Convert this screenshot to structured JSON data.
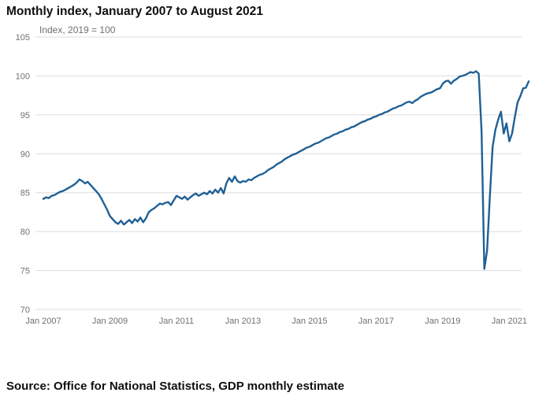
{
  "page": {
    "title": "Monthly index, January 2007 to August 2021",
    "source": "Source: Office for National Statistics, GDP monthly estimate"
  },
  "chart_data": {
    "type": "line",
    "title": "Monthly index, January 2007 to August 2021",
    "subtitle": "Index, 2019 = 100",
    "legend": "none",
    "grid": "horizontal",
    "line_color": "#206095",
    "axis_text_color": "#707071",
    "grid_color": "#dedede",
    "ylim": [
      70,
      105
    ],
    "y_ticks": [
      70,
      75,
      80,
      85,
      90,
      95,
      100,
      105
    ],
    "x_tick_labels": [
      {
        "label": "Jan 2007",
        "month": 0
      },
      {
        "label": "Jan 2009",
        "month": 24
      },
      {
        "label": "Jan 2011",
        "month": 48
      },
      {
        "label": "Jan 2013",
        "month": 72
      },
      {
        "label": "Jan 2015",
        "month": 96
      },
      {
        "label": "Jan 2017",
        "month": 120
      },
      {
        "label": "Jan 2019",
        "month": 144
      },
      {
        "label": "Jan 2021",
        "month": 168
      }
    ],
    "series": [
      {
        "name": "GDP monthly index, 2019 = 100",
        "start": "Jan 2007",
        "end": "Aug 2021",
        "values": [
          84.2,
          84.4,
          84.3,
          84.6,
          84.7,
          84.9,
          85.1,
          85.2,
          85.4,
          85.6,
          85.8,
          86.0,
          86.3,
          86.7,
          86.5,
          86.2,
          86.4,
          86.0,
          85.6,
          85.2,
          84.8,
          84.2,
          83.5,
          82.8,
          82.0,
          81.6,
          81.2,
          81.0,
          81.4,
          80.9,
          81.2,
          81.5,
          81.1,
          81.6,
          81.3,
          81.8,
          81.2,
          81.7,
          82.5,
          82.8,
          83.0,
          83.3,
          83.6,
          83.5,
          83.7,
          83.8,
          83.4,
          84.0,
          84.6,
          84.4,
          84.2,
          84.5,
          84.1,
          84.4,
          84.7,
          84.9,
          84.6,
          84.8,
          85.0,
          84.8,
          85.2,
          84.9,
          85.4,
          85.0,
          85.6,
          84.9,
          86.2,
          86.9,
          86.4,
          87.1,
          86.5,
          86.3,
          86.5,
          86.4,
          86.7,
          86.6,
          86.9,
          87.1,
          87.3,
          87.4,
          87.6,
          87.9,
          88.1,
          88.3,
          88.6,
          88.8,
          89.0,
          89.3,
          89.5,
          89.7,
          89.9,
          90.0,
          90.2,
          90.4,
          90.6,
          90.8,
          90.9,
          91.1,
          91.3,
          91.4,
          91.6,
          91.8,
          92.0,
          92.1,
          92.3,
          92.5,
          92.6,
          92.8,
          92.9,
          93.1,
          93.2,
          93.4,
          93.5,
          93.7,
          93.9,
          94.1,
          94.2,
          94.4,
          94.5,
          94.7,
          94.8,
          95.0,
          95.1,
          95.3,
          95.4,
          95.6,
          95.8,
          95.9,
          96.1,
          96.2,
          96.4,
          96.6,
          96.7,
          96.5,
          96.8,
          97.0,
          97.3,
          97.5,
          97.7,
          97.8,
          97.9,
          98.1,
          98.3,
          98.4,
          99.0,
          99.3,
          99.4,
          99.0,
          99.4,
          99.6,
          99.9,
          100.0,
          100.1,
          100.3,
          100.5,
          100.4,
          100.6,
          100.3,
          92.8,
          75.2,
          77.6,
          84.5,
          90.9,
          93.1,
          94.4,
          95.4,
          92.6,
          93.9,
          91.6,
          92.6,
          94.7,
          96.6,
          97.4,
          98.4,
          98.5,
          99.3
        ]
      }
    ]
  }
}
